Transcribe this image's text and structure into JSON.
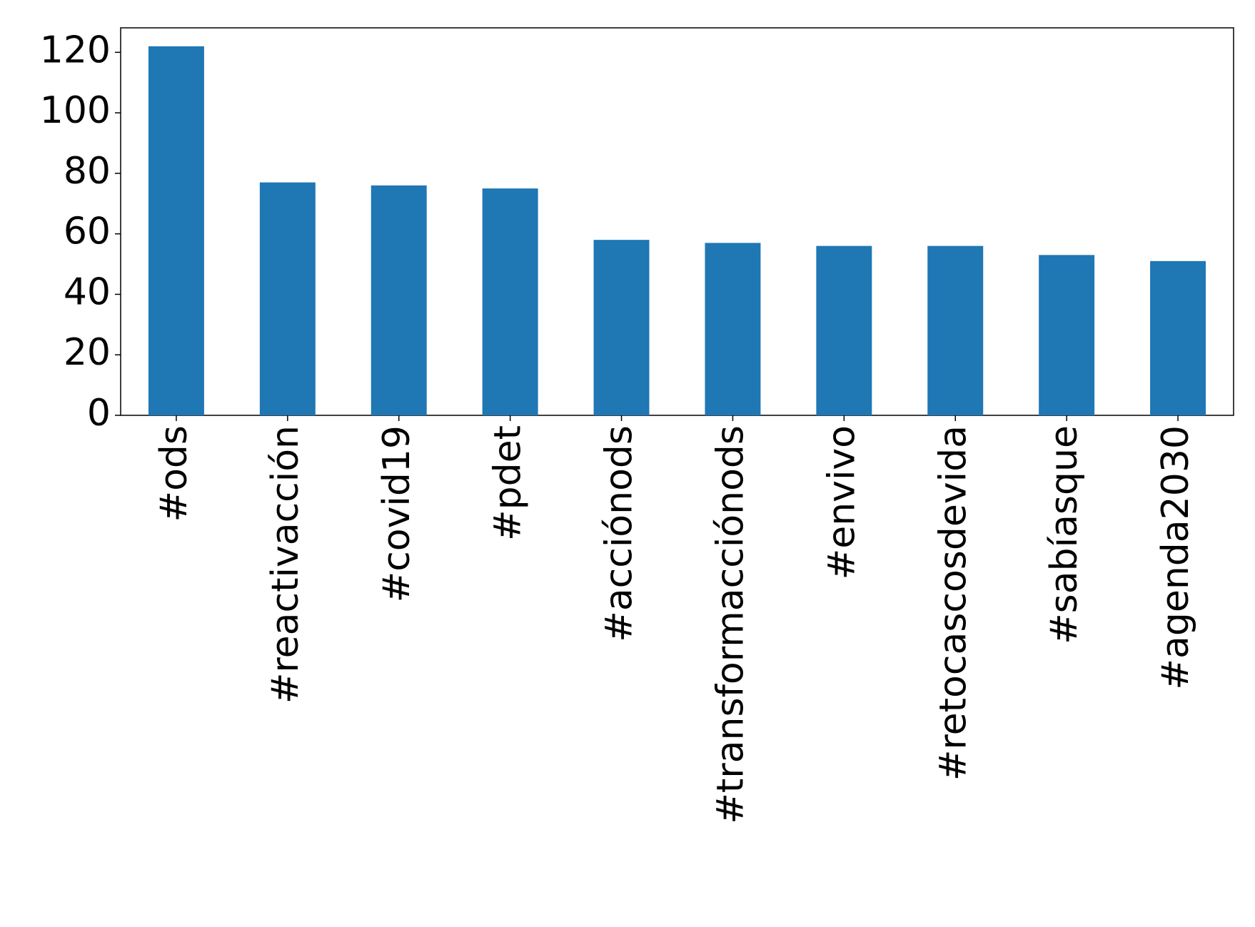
{
  "chart_data": {
    "type": "bar",
    "categories": [
      "#ods",
      "#reactivacción",
      "#covid19",
      "#pdet",
      "#acciónods",
      "#transformacciónods",
      "#envivo",
      "#retocascosdevida",
      "#sabíasque",
      "#agenda2030"
    ],
    "values": [
      122,
      77,
      76,
      75,
      58,
      57,
      56,
      56,
      53,
      51
    ],
    "color": "#1f77b4",
    "ylim": [
      0,
      128.1
    ],
    "yticks": [
      0,
      20,
      40,
      60,
      80,
      100,
      120
    ]
  }
}
